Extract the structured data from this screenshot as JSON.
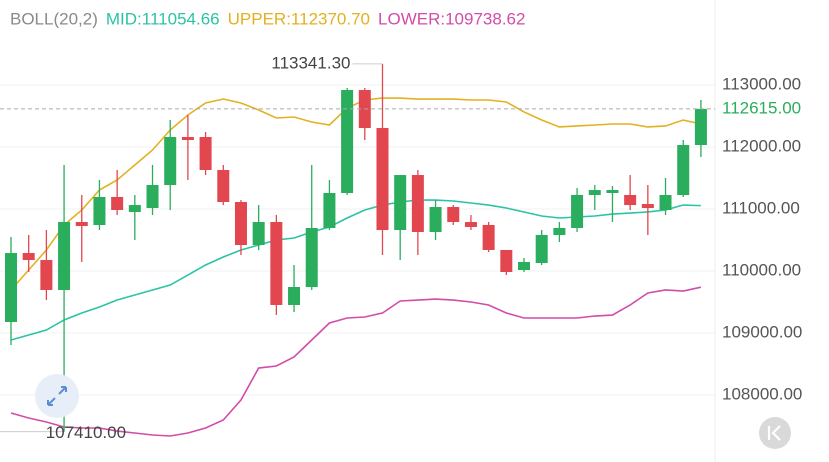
{
  "chart_data": {
    "type": "candlestick",
    "indicator": "BOLL(20,2)",
    "ylim": [
      107113,
      114371
    ],
    "yticks": [
      {
        "value": 113000,
        "label": "113000.00"
      },
      {
        "value": 112000,
        "label": "112000.00"
      },
      {
        "value": 111000,
        "label": "111000.00"
      },
      {
        "value": 110000,
        "label": "110000.00"
      },
      {
        "value": 109000,
        "label": "109000.00"
      },
      {
        "value": 108000,
        "label": "108000.00"
      }
    ],
    "grid": true,
    "up_color": "#2aad5c",
    "down_color": "#e2464f",
    "open": [
      109177,
      110290,
      110177,
      109694,
      110790,
      110742,
      111194,
      110952,
      111016,
      111387,
      112161,
      112161,
      111629,
      111113,
      110419,
      110790,
      109452,
      109742,
      110694,
      111258,
      112919,
      112306,
      110661,
      111548,
      110629,
      111032,
      110790,
      110742,
      110339,
      110016,
      110129,
      110581,
      110694,
      111226,
      111258,
      111226,
      111080,
      110984,
      111226,
      112032
    ],
    "high": [
      110548,
      110581,
      110661,
      111710,
      111226,
      111468,
      111629,
      111226,
      111710,
      112435,
      112516,
      112242,
      111710,
      111145,
      111064,
      110903,
      110097,
      111710,
      111468,
      112952,
      112952,
      113341.3,
      111548,
      111629,
      111145,
      111064,
      110903,
      110790,
      110339,
      110210,
      110661,
      110790,
      111339,
      111387,
      111371,
      111548,
      111387,
      111500,
      112113,
      112758
    ],
    "low": [
      108806,
      109984,
      109532,
      107410,
      110145,
      110661,
      110903,
      110500,
      110903,
      110984,
      111468,
      111548,
      111064,
      110258,
      110339,
      109290,
      109339,
      109694,
      110661,
      111226,
      112113,
      110258,
      110177,
      110258,
      110500,
      110742,
      110661,
      110306,
      109935,
      109984,
      110097,
      110468,
      110629,
      110984,
      110790,
      110984,
      110581,
      110903,
      111194,
      111839
    ],
    "close": [
      110290,
      110177,
      109694,
      110790,
      110726,
      111194,
      110984,
      111064,
      111387,
      112161,
      112113,
      111629,
      111113,
      110419,
      110790,
      109452,
      109742,
      110694,
      111258,
      112919,
      112306,
      110661,
      111548,
      110629,
      111032,
      110790,
      110710,
      110339,
      109984,
      110145,
      110581,
      110694,
      111226,
      111306,
      111306,
      111064,
      111016,
      111226,
      112032,
      112615
    ],
    "bands": [
      {
        "label": "MID:111054.66",
        "color": "#2cc3a5",
        "values": [
          108887,
          108968,
          109048,
          109210,
          109322,
          109419,
          109532,
          109613,
          109694,
          109774,
          109935,
          110097,
          110226,
          110339,
          110419,
          110500,
          110532,
          110629,
          110710,
          110855,
          110984,
          111064,
          111113,
          111145,
          111145,
          111129,
          111097,
          111064,
          111016,
          110952,
          110887,
          110855,
          110871,
          110887,
          110919,
          110935,
          110952,
          110984,
          111064,
          111054.66
        ]
      },
      {
        "label": "UPPER:112370.70",
        "color": "#e3b120",
        "values": [
          109694,
          110016,
          110339,
          110742,
          110984,
          111306,
          111468,
          111710,
          111952,
          112274,
          112516,
          112710,
          112774,
          112710,
          112597,
          112468,
          112484,
          112403,
          112355,
          112629,
          112758,
          112790,
          112790,
          112774,
          112774,
          112774,
          112758,
          112758,
          112726,
          112565,
          112435,
          112323,
          112339,
          112355,
          112371,
          112371,
          112323,
          112339,
          112435,
          112370.7
        ]
      },
      {
        "label": "LOWER:109738.62",
        "color": "#d24ca8",
        "values": [
          107710,
          107629,
          107565,
          107484,
          107468,
          107468,
          107419,
          107387,
          107355,
          107339,
          107387,
          107468,
          107597,
          107919,
          108435,
          108468,
          108613,
          108887,
          109161,
          109242,
          109258,
          109323,
          109516,
          109532,
          109548,
          109532,
          109500,
          109452,
          109323,
          109242,
          109242,
          109242,
          109242,
          109274,
          109290,
          109452,
          109645,
          109694,
          109677,
          109738.62
        ]
      }
    ],
    "max_label": "113341.30",
    "min_label": "107410.00",
    "last_value": 112615,
    "last_label": "112615.00"
  }
}
